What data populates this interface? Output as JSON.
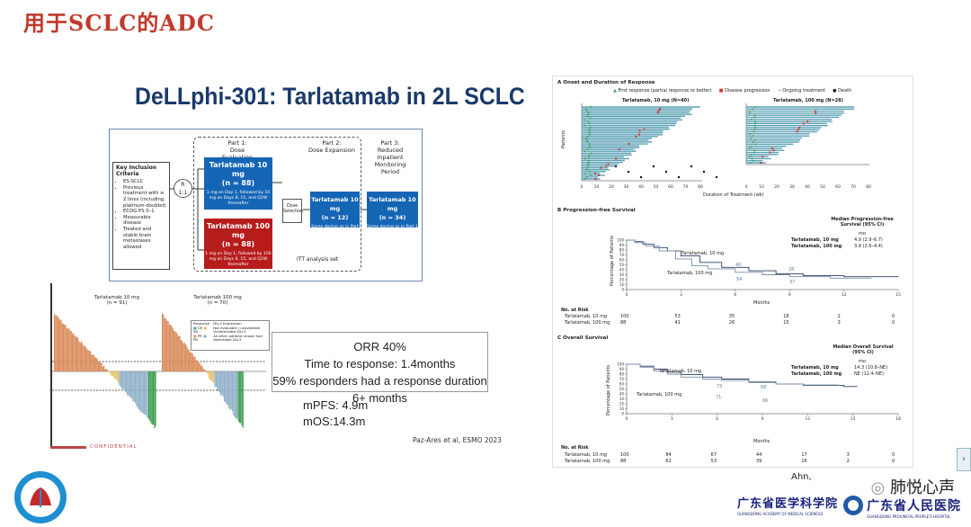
{
  "slide_title": "用于SCLC的ADC",
  "headline": "DeLLphi-301: Tarlatamab in 2L SCLC",
  "criteria": {
    "heading": "Key Inclusion Criteria",
    "items": [
      "ES-SCLC",
      "Previous treatment with ≥ 2 lines (including platinum-doublet)",
      "ECOG PS 0–1",
      "Measurable disease",
      "Treated and stable brain metastases allowed"
    ]
  },
  "randomize": {
    "label_r": "R",
    "label_ratio": "1:1"
  },
  "part1": {
    "label": "Part 1:",
    "sub": "Dose Evaluation"
  },
  "part2": {
    "label": "Part 2:",
    "sub": "Dose Expansion"
  },
  "part3": {
    "label": "Part 3:",
    "sub": "Reduced Inpatient Monitoring Period"
  },
  "arm10": {
    "name": "Tarlatamab 10 mg",
    "n": "(n = 88)",
    "desc": "1 mg on Day 1, followed by 10 mg on Days 8, 15, and Q2W thereafter"
  },
  "arm100": {
    "name": "Tarlatamab 100 mg",
    "n": "(n = 88)",
    "desc": "1 mg on Day 1, followed by 100 mg on Days 8, 15, and Q2W thereafter"
  },
  "dose_selection": "Dose Selection",
  "exp2": {
    "name": "Tarlatamab 10 mg",
    "n": "(n = 12)",
    "desc": "Same dosing as in Part 1"
  },
  "exp3": {
    "name": "Tarlatamab 10 mg",
    "n": "(n = 34)",
    "desc": "Same dosing as in Part 1"
  },
  "itt": "ITT analysis set",
  "waterfall": {
    "left_title": "Tarlatamab 10 mg",
    "left_n": "(n = 91)",
    "right_title": "Tarlatamab 100 mg",
    "right_n": "(n = 70)",
    "legend_response": "Response",
    "legend_items": [
      "CR",
      "SD",
      "PR",
      "PD"
    ],
    "legend_dll3": "DLL3 Expression",
    "legend_dll3_items": [
      "Not evaluable / unavailable",
      "Undetectable DLL3",
      "All other patients shown had detectable DLL3"
    ],
    "footer": "CONFIDENTIAL"
  },
  "orr": {
    "line1": "ORR 40%",
    "line2": "Time to response: 1.4months",
    "line3": "59% responders had a response duration 6+ months"
  },
  "mpfs": "mPFS: 4.9m",
  "mos": "mOS:14.3m",
  "citation": "Paz-Ares et al, ESMO 2023",
  "panelA": {
    "title": "A   Onset and Duration of Response",
    "legend": [
      "First response (partial response or better)",
      "Disease progression",
      "Ongoing treatment",
      "Death"
    ],
    "left_title": "Tarlatamab, 10 mg (N=40)",
    "right_title": "Tarlatamab, 100 mg (N=28)",
    "ylabel": "Patients",
    "xlabel": "Duration of Treatment (wk)",
    "ticks_left": [
      "0",
      "10",
      "20",
      "30",
      "40",
      "50",
      "60",
      "70",
      "80"
    ],
    "ticks_right": [
      "0",
      "10",
      "20",
      "30",
      "40",
      "50",
      "60",
      "70",
      "80"
    ]
  },
  "panelB": {
    "title": "B   Progression-free Survival",
    "median_title": "Median Progression-free Survival (95% CI)",
    "unit": "mo",
    "row1_name": "Tarlatamab, 10 mg",
    "row1_val": "4.9 (2.9–6.7)",
    "row2_name": "Tarlatamab, 100 mg",
    "row2_val": "3.9 (2.6–4.4)",
    "ylabel": "Percentage of Patients",
    "xlabel": "Months",
    "yticks": [
      "100",
      "90",
      "80",
      "70",
      "60",
      "50",
      "40",
      "30",
      "20",
      "10",
      "0"
    ],
    "xticks": [
      "0",
      "3",
      "6",
      "9",
      "12",
      "15"
    ],
    "label10": "Tarlatamab, 10 mg",
    "label100": "Tarlatamab, 100 mg",
    "annot": [
      "40",
      "28",
      "54",
      "37"
    ],
    "risk_header": "No. at Risk",
    "risk_row1": {
      "name": "Tarlatamab, 10 mg",
      "vals": [
        "100",
        "53",
        "35",
        "18",
        "2",
        "0"
      ]
    },
    "risk_row2": {
      "name": "Tarlatamab, 100 mg",
      "vals": [
        "88",
        "41",
        "26",
        "15",
        "3",
        "0"
      ]
    }
  },
  "panelC": {
    "title": "C   Overall Survival",
    "median_title": "Median Overall Survival (95% CI)",
    "unit": "mo",
    "row1_name": "Tarlatamab, 10 mg",
    "row1_val": "14.3 (10.8–NE)",
    "row2_name": "Tarlatamab, 100 mg",
    "row2_val": "NE (12.4–NE)",
    "ylabel": "Percentage of Patients",
    "xlabel": "Months",
    "yticks": [
      "100",
      "90",
      "80",
      "70",
      "60",
      "50",
      "40",
      "30",
      "20",
      "10",
      "0"
    ],
    "xticks": [
      "0",
      "3",
      "6",
      "9",
      "12",
      "15",
      "18"
    ],
    "label10": "Tarlatamab, 10 mg",
    "label100": "Tarlatamab, 100 mg",
    "annot": [
      "73",
      "68",
      "71",
      "66"
    ],
    "risk_header": "No. at Risk",
    "risk_row1": {
      "name": "Tarlatamab, 10 mg",
      "vals": [
        "100",
        "84",
        "67",
        "44",
        "17",
        "3",
        "0"
      ]
    },
    "risk_row2": {
      "name": "Tarlatamab, 100 mg",
      "vals": [
        "88",
        "62",
        "53",
        "39",
        "16",
        "2",
        "0"
      ]
    }
  },
  "ahn_cite": "Ahn,",
  "watermark": "肺悦心声",
  "org1": "广东省医学科学院",
  "org1_en": "GUANGDONG ACADEMY OF MEDICAL SCIENCES",
  "org2": "广东省人民医院",
  "org2_en": "GUANGDONG PROVINCIAL PEOPLE'S HOSPITAL",
  "nav_arrow": "›",
  "colors": {
    "title": "#c0392b",
    "blue_arm": "#1565b5",
    "red_arm": "#b71c1c",
    "km10": "#2c3e66",
    "km100": "#7a8fa8"
  }
}
